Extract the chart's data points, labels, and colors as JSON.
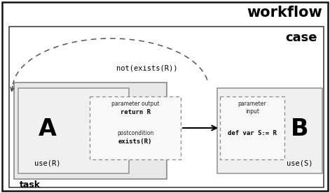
{
  "bg_color": "#ffffff",
  "workflow_label": "workflow",
  "case_label": "case",
  "task_label": "task",
  "label_A": "A",
  "label_B": "B",
  "use_R": "use(R)",
  "use_S": "use(S)",
  "param_output_title": "parameter output",
  "param_output_line1": "return R",
  "param_output_line2": "postcondition",
  "param_output_line3": "exists(R)",
  "param_input_title": "parameter",
  "param_input_line1": "input",
  "param_input_line2": "def var S:= R",
  "not_exists_label": "not(exists(R))"
}
